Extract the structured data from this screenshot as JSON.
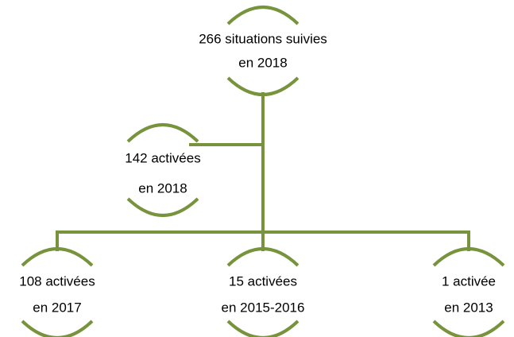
{
  "nodes": [
    {
      "lines": [
        "266 situations suivies",
        "en 2018"
      ]
    },
    {
      "lines": [
        "142 activées",
        "en 2018"
      ]
    },
    {
      "lines": [
        "108 activées",
        "en 2017"
      ]
    },
    {
      "lines": [
        "15 activées",
        "en 2015-2016"
      ]
    },
    {
      "lines": [
        "1 activée",
        "en 2013"
      ]
    }
  ]
}
